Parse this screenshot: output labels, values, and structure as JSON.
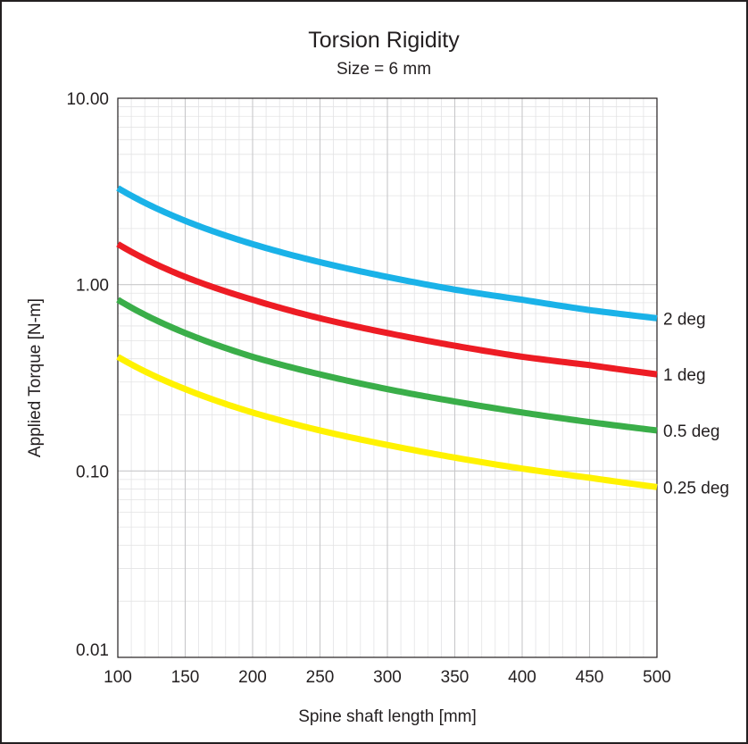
{
  "chart_data": {
    "type": "line",
    "title": "Torsion Rigidity",
    "subtitle": "Size = 6 mm",
    "xlabel": "Spine shaft length [mm]",
    "ylabel": "Applied Torque [N-m]",
    "xlim": [
      100,
      500
    ],
    "ylim": [
      0.01,
      10
    ],
    "yscale": "log",
    "grid": true,
    "legend": "inline labels at right end of each line",
    "x_ticks": [
      100,
      150,
      200,
      250,
      300,
      350,
      400,
      450,
      500
    ],
    "x_tick_labels": [
      "100",
      "150",
      "200",
      "250",
      "300",
      "350",
      "400",
      "450",
      "500"
    ],
    "y_ticks": [
      0.01,
      0.1,
      1,
      10
    ],
    "y_tick_labels": [
      "0.01",
      "0.10",
      "1.00",
      "10.00"
    ],
    "x": [
      100,
      150,
      200,
      250,
      300,
      350,
      400,
      450,
      500
    ],
    "series": [
      {
        "name": "2 deg",
        "color": "#1ab2e8",
        "values": [
          3.3,
          2.2,
          1.65,
          1.32,
          1.1,
          0.94,
          0.83,
          0.73,
          0.66
        ]
      },
      {
        "name": "1 deg",
        "color": "#ed1c24",
        "values": [
          1.65,
          1.1,
          0.83,
          0.66,
          0.55,
          0.47,
          0.41,
          0.37,
          0.33
        ]
      },
      {
        "name": "0.5 deg",
        "color": "#3aae49",
        "values": [
          0.83,
          0.55,
          0.41,
          0.33,
          0.275,
          0.236,
          0.206,
          0.183,
          0.165
        ]
      },
      {
        "name": "0.25 deg",
        "color": "#fff200",
        "values": [
          0.41,
          0.275,
          0.206,
          0.165,
          0.138,
          0.118,
          0.103,
          0.092,
          0.082
        ]
      }
    ]
  }
}
